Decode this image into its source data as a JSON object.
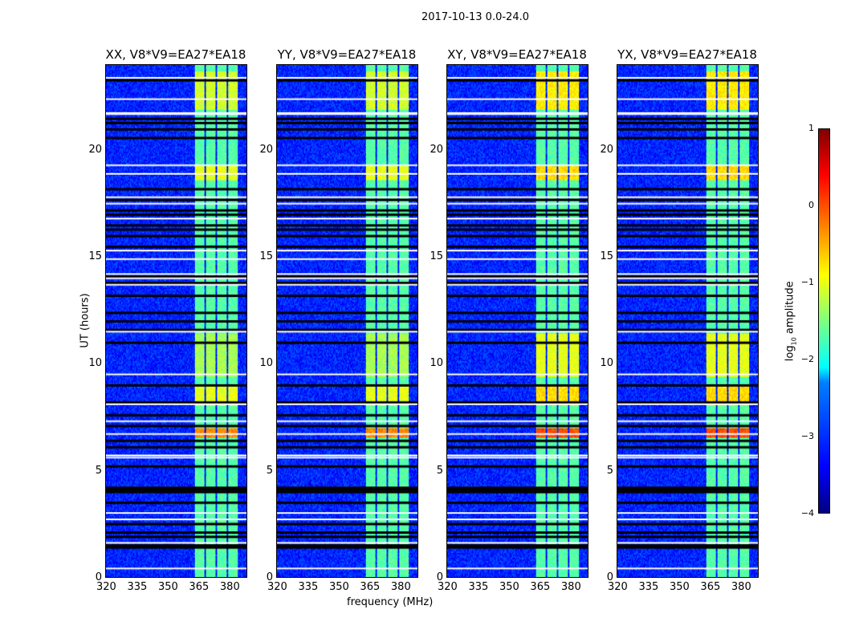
{
  "title": "2017-10-13 0.0-24.0",
  "chart_data": {
    "type": "heatmap",
    "panels": [
      {
        "title": "XX, V8*V9=EA27*EA18"
      },
      {
        "title": "YY, V8*V9=EA27*EA18"
      },
      {
        "title": "XY, V8*V9=EA27*EA18"
      },
      {
        "title": "YX, V8*V9=EA27*EA18"
      }
    ],
    "xlabel": "frequency (MHz)",
    "ylabel": "UT (hours)",
    "xlim": [
      320,
      389
    ],
    "ylim": [
      0,
      24
    ],
    "xticks": [
      "320",
      "335",
      "350",
      "365",
      "380"
    ],
    "yticks": [
      "0",
      "5",
      "10",
      "15",
      "20"
    ],
    "colorbar": {
      "label": "log10 amplitude",
      "label_main": "log",
      "label_sub": "10",
      "label_rest": " amplitude",
      "range": [
        -4,
        1
      ],
      "ticks": [
        "1",
        "0",
        "−1",
        "−2",
        "−3",
        "−4"
      ],
      "colormap": "jet"
    },
    "background_level": -3.2,
    "bright_channel_bands_mhz": [
      [
        363.6,
        368.3
      ],
      [
        369.1,
        373.8
      ],
      [
        374.6,
        379.3
      ],
      [
        380.0,
        384.7
      ]
    ],
    "band_level": -1.7,
    "bright_intervals_hours": [
      {
        "range": [
          21.9,
          23.7
        ],
        "level": -1.1
      },
      {
        "range": [
          18.6,
          19.3
        ],
        "level": -1.0
      },
      {
        "range": [
          9.4,
          11.4
        ],
        "level": -1.3
      },
      {
        "range": [
          8.0,
          8.9
        ],
        "level": -1.0
      },
      {
        "range": [
          6.5,
          7.0
        ],
        "level": -0.3
      }
    ],
    "flagged_black_hours": [
      1.4,
      1.5,
      1.9,
      2.1,
      2.5,
      3.5,
      4.0,
      4.1,
      4.2,
      5.2,
      6.1,
      6.4,
      7.1,
      7.6,
      8.2,
      9.0,
      11.0,
      11.6,
      12.0,
      12.4,
      13.2,
      13.8,
      14.1,
      15.5,
      16.0,
      16.3,
      16.5,
      17.0,
      17.2,
      17.7,
      18.2,
      20.6,
      21.0,
      21.3,
      21.5,
      23.3
    ],
    "flagged_white_hours": [
      0.4,
      1.6,
      2.7,
      3.0,
      5.6,
      5.7,
      6.7,
      7.3,
      8.1,
      9.5,
      11.5,
      13.7,
      14.0,
      14.2,
      14.9,
      15.3,
      16.8,
      17.5,
      17.8,
      18.9,
      19.3,
      21.7,
      21.75,
      22.4,
      23.4
    ]
  }
}
